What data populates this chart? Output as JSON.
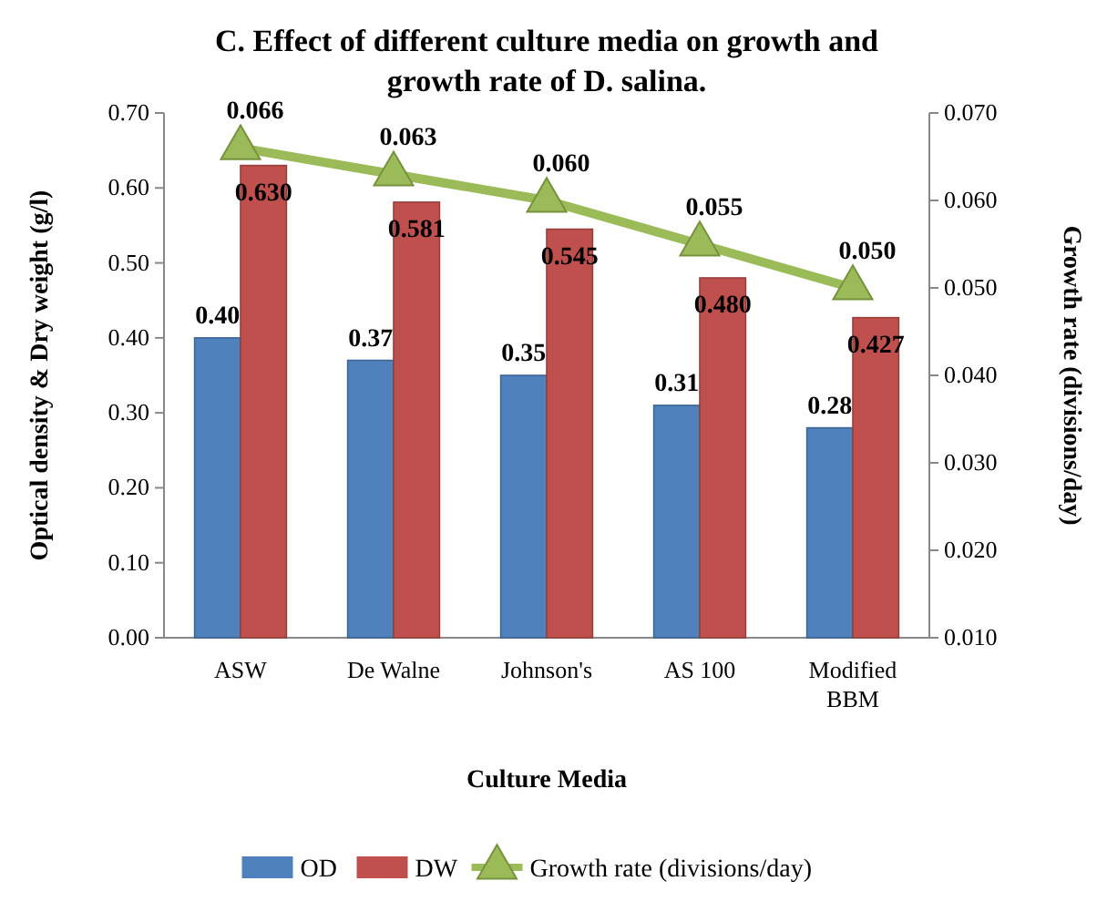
{
  "chart_data": {
    "type": "bar",
    "title": "C. Effect of different culture media on growth and growth rate of D. salina.",
    "xlabel": "Culture Media",
    "ylabel": "Optical density & Dry weight (g/l)",
    "y2label": "Growth rate (divisions/day)",
    "categories": [
      "ASW",
      "De Walne",
      "Johnson's",
      "AS 100",
      "Modified BBM"
    ],
    "series": [
      {
        "name": "OD",
        "color": "#4f81bd",
        "values": [
          0.4,
          0.37,
          0.35,
          0.31,
          0.28
        ],
        "value_labels": [
          "0.40",
          "0.37",
          "0.35",
          "0.31",
          "0.28"
        ]
      },
      {
        "name": "DW",
        "color": "#c0504d",
        "values": [
          0.63,
          0.581,
          0.545,
          0.48,
          0.427
        ],
        "value_labels": [
          "0.630",
          "0.581",
          "0.545",
          "0.480",
          "0.427"
        ]
      },
      {
        "name": "Growth rate (divisions/day)",
        "type": "line",
        "axis": "y2",
        "color": "#9bbb59",
        "marker": "triangle",
        "values": [
          0.066,
          0.063,
          0.06,
          0.055,
          0.05
        ],
        "value_labels": [
          "0.066",
          "0.063",
          "0.060",
          "0.055",
          "0.050"
        ]
      }
    ],
    "ylim": [
      0,
      0.7
    ],
    "yticks": [
      {
        "value": 0,
        "label": "0.00"
      },
      {
        "value": 0.1,
        "label": "0.10"
      },
      {
        "value": 0.2,
        "label": "0.20"
      },
      {
        "value": 0.3,
        "label": "0.30"
      },
      {
        "value": 0.4,
        "label": "0.40"
      },
      {
        "value": 0.5,
        "label": "0.50"
      },
      {
        "value": 0.6,
        "label": "0.60"
      },
      {
        "value": 0.7,
        "label": "0.70"
      }
    ],
    "y2lim": [
      0.01,
      0.07
    ],
    "y2ticks": [
      {
        "value": 0.01,
        "label": "0.010"
      },
      {
        "value": 0.02,
        "label": "0.020"
      },
      {
        "value": 0.03,
        "label": "0.030"
      },
      {
        "value": 0.04,
        "label": "0.040"
      },
      {
        "value": 0.05,
        "label": "0.050"
      },
      {
        "value": 0.06,
        "label": "0.060"
      },
      {
        "value": 0.07,
        "label": "0.070"
      }
    ],
    "legend": "bottom"
  }
}
